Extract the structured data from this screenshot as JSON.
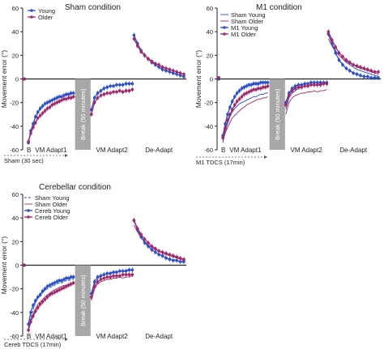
{
  "chart_data": [
    {
      "type": "line",
      "title": "Sham condition",
      "ylabel": "Movement error (°)",
      "ylim": [
        -60,
        60
      ],
      "yticks": [
        "60",
        "40",
        "20",
        "0",
        "-20",
        "-40",
        "-60"
      ],
      "phase_labels": [
        "B",
        "VM Adapt1",
        "VM Adapt2",
        "De-Adapt"
      ],
      "break_label": "Break (50 minutes)",
      "stim_label": "Sham (30 sec)",
      "series": [
        {
          "name": "Young",
          "color": "#2b4fc7",
          "style": "solid",
          "marker": "circle",
          "baseline": 0,
          "adapt1": [
            -54,
            -44,
            -38,
            -32,
            -28,
            -25,
            -23,
            -21,
            -20,
            -19,
            -18,
            -17,
            -16,
            -15,
            -15,
            -14,
            -13,
            -13,
            -12,
            -12
          ],
          "adapt2": [
            -26,
            -16,
            -12,
            -10,
            -8,
            -7,
            -6,
            -6,
            -5,
            -5,
            -5,
            -4,
            -4,
            -4
          ],
          "deadapt": [
            37,
            30,
            24,
            20,
            17,
            14,
            12,
            10,
            8,
            7,
            6,
            5,
            4,
            3,
            2
          ]
        },
        {
          "name": "Older",
          "color": "#9e2a6a",
          "style": "solid",
          "marker": "circle",
          "baseline": 0,
          "adapt1": [
            -53,
            -46,
            -41,
            -37,
            -33,
            -31,
            -29,
            -27,
            -25,
            -24,
            -22,
            -21,
            -20,
            -19,
            -18,
            -17,
            -17,
            -16,
            -16,
            -15
          ],
          "adapt2": [
            -30,
            -20,
            -16,
            -14,
            -13,
            -12,
            -12,
            -11,
            -11,
            -10,
            -11,
            -10,
            -10,
            -9
          ],
          "deadapt": [
            34,
            28,
            23,
            20,
            17,
            15,
            13,
            12,
            10,
            9,
            8,
            7,
            6,
            5,
            4
          ]
        }
      ]
    },
    {
      "type": "line",
      "title": "M1 condition",
      "ylabel": "Movement error (°)",
      "ylim": [
        -60,
        60
      ],
      "yticks": [
        "60",
        "40",
        "20",
        "0",
        "-20",
        "-40",
        "-60"
      ],
      "phase_labels": [
        "B",
        "VM Adapt1",
        "VM Adapt2",
        "De-Adapt"
      ],
      "break_label": "Break (50 minutes)",
      "stim_label": "M1 TDCS (17min)",
      "series": [
        {
          "name": "Sham Young",
          "color": "#2b4fc7",
          "style": "solid-thin",
          "marker": "none",
          "baseline": 0,
          "adapt1": [
            -54,
            -44,
            -38,
            -32,
            -28,
            -25,
            -23,
            -21,
            -20,
            -19,
            -18,
            -17,
            -16,
            -15,
            -15,
            -14,
            -13,
            -13,
            -12,
            -12
          ],
          "adapt2": [
            -26,
            -16,
            -12,
            -10,
            -8,
            -7,
            -6,
            -6,
            -5,
            -5,
            -5,
            -4,
            -4,
            -4
          ],
          "deadapt": [
            37,
            30,
            24,
            20,
            17,
            14,
            12,
            10,
            8,
            7,
            6,
            5,
            4,
            3,
            2
          ]
        },
        {
          "name": "Sham Older",
          "color": "#9e2a6a",
          "style": "solid-thin",
          "marker": "none",
          "baseline": 0,
          "adapt1": [
            -53,
            -46,
            -41,
            -37,
            -33,
            -31,
            -29,
            -27,
            -25,
            -24,
            -22,
            -21,
            -20,
            -19,
            -18,
            -17,
            -17,
            -16,
            -16,
            -15
          ],
          "adapt2": [
            -30,
            -20,
            -16,
            -14,
            -13,
            -12,
            -12,
            -11,
            -11,
            -10,
            -11,
            -10,
            -10,
            -9
          ],
          "deadapt": [
            34,
            28,
            23,
            20,
            17,
            15,
            13,
            12,
            10,
            9,
            8,
            7,
            6,
            5,
            4
          ]
        },
        {
          "name": "M1 Young",
          "color": "#2b4fc7",
          "style": "solid",
          "marker": "circle",
          "baseline": 0,
          "adapt1": [
            -48,
            -38,
            -30,
            -24,
            -19,
            -15,
            -12,
            -10,
            -8,
            -7,
            -6,
            -5,
            -5,
            -4,
            -4,
            -4,
            -3,
            -3,
            -3,
            -3
          ],
          "adapt2": [
            -20,
            -12,
            -8,
            -6,
            -5,
            -5,
            -4,
            -4,
            -3,
            -3,
            -3,
            -3,
            -3,
            -3
          ],
          "deadapt": [
            38,
            30,
            22,
            16,
            12,
            9,
            7,
            5,
            4,
            3,
            2,
            2,
            1,
            1,
            1
          ]
        },
        {
          "name": "M1 Older",
          "color": "#9e2a6a",
          "style": "solid",
          "marker": "circle",
          "baseline": 1,
          "adapt1": [
            -50,
            -42,
            -35,
            -30,
            -26,
            -22,
            -19,
            -17,
            -15,
            -13,
            -12,
            -11,
            -10,
            -9,
            -9,
            -8,
            -8,
            -7,
            -7,
            -6
          ],
          "adapt2": [
            -22,
            -14,
            -10,
            -8,
            -7,
            -7,
            -6,
            -6,
            -5,
            -5,
            -5,
            -5,
            -4,
            -4
          ],
          "deadapt": [
            40,
            33,
            27,
            22,
            19,
            16,
            14,
            12,
            11,
            10,
            9,
            8,
            7,
            6,
            6
          ]
        }
      ]
    },
    {
      "type": "line",
      "title": "Cerebellar condition",
      "ylabel": "Movement error (°)",
      "ylim": [
        -60,
        60
      ],
      "yticks": [
        "60",
        "40",
        "20",
        "0",
        "-20",
        "-40",
        "-60"
      ],
      "phase_labels": [
        "B",
        "VM Adapt1",
        "VM Adapt2",
        "De-Adapt"
      ],
      "break_label": "Break (50 minutes)",
      "stim_label": "Cereb TDCS (17min)",
      "series": [
        {
          "name": "Sham Young",
          "color": "#2b4fc7",
          "style": "dashed",
          "marker": "none",
          "baseline": 0,
          "adapt1": [
            -54,
            -44,
            -38,
            -32,
            -28,
            -25,
            -23,
            -21,
            -20,
            -19,
            -18,
            -17,
            -16,
            -15,
            -15,
            -14,
            -13,
            -13,
            -12,
            -12
          ],
          "adapt2": [
            -26,
            -16,
            -12,
            -10,
            -8,
            -7,
            -6,
            -6,
            -5,
            -5,
            -5,
            -4,
            -4,
            -4
          ],
          "deadapt": [
            37,
            30,
            24,
            20,
            17,
            14,
            12,
            10,
            8,
            7,
            6,
            5,
            4,
            3,
            2
          ]
        },
        {
          "name": "Sham Older",
          "color": "#9e2a6a",
          "style": "solid-thin",
          "marker": "none",
          "baseline": 0,
          "adapt1": [
            -53,
            -46,
            -41,
            -37,
            -33,
            -31,
            -29,
            -27,
            -25,
            -24,
            -22,
            -21,
            -20,
            -19,
            -18,
            -17,
            -17,
            -16,
            -16,
            -15
          ],
          "adapt2": [
            -30,
            -20,
            -16,
            -14,
            -13,
            -12,
            -12,
            -11,
            -11,
            -10,
            -11,
            -10,
            -10,
            -9
          ],
          "deadapt": [
            34,
            28,
            23,
            20,
            17,
            15,
            13,
            12,
            10,
            9,
            8,
            7,
            6,
            5,
            4
          ]
        },
        {
          "name": "Cereb Young",
          "color": "#2b4fc7",
          "style": "solid",
          "marker": "circle",
          "baseline": 0,
          "adapt1": [
            -50,
            -40,
            -34,
            -30,
            -27,
            -25,
            -22,
            -20,
            -18,
            -17,
            -16,
            -15,
            -14,
            -13,
            -13,
            -12,
            -11,
            -11,
            -10,
            -10
          ],
          "adapt2": [
            -24,
            -14,
            -10,
            -9,
            -8,
            -7,
            -7,
            -6,
            -6,
            -5,
            -5,
            -5,
            -4,
            -4
          ],
          "deadapt": [
            38,
            30,
            24,
            19,
            16,
            13,
            11,
            9,
            8,
            6,
            5,
            4,
            4,
            3,
            3
          ]
        },
        {
          "name": "Cereb Older",
          "color": "#9e2a6a",
          "style": "solid",
          "marker": "circle",
          "baseline": 0,
          "adapt1": [
            -55,
            -48,
            -43,
            -39,
            -36,
            -33,
            -31,
            -29,
            -27,
            -25,
            -24,
            -23,
            -22,
            -21,
            -20,
            -19,
            -18,
            -17,
            -16,
            -15
          ],
          "adapt2": [
            -27,
            -18,
            -14,
            -12,
            -11,
            -10,
            -10,
            -9,
            -9,
            -9,
            -8,
            -8,
            -8,
            -8
          ],
          "deadapt": [
            38,
            31,
            26,
            22,
            19,
            16,
            14,
            12,
            11,
            10,
            9,
            8,
            7,
            6,
            5
          ]
        }
      ]
    }
  ]
}
